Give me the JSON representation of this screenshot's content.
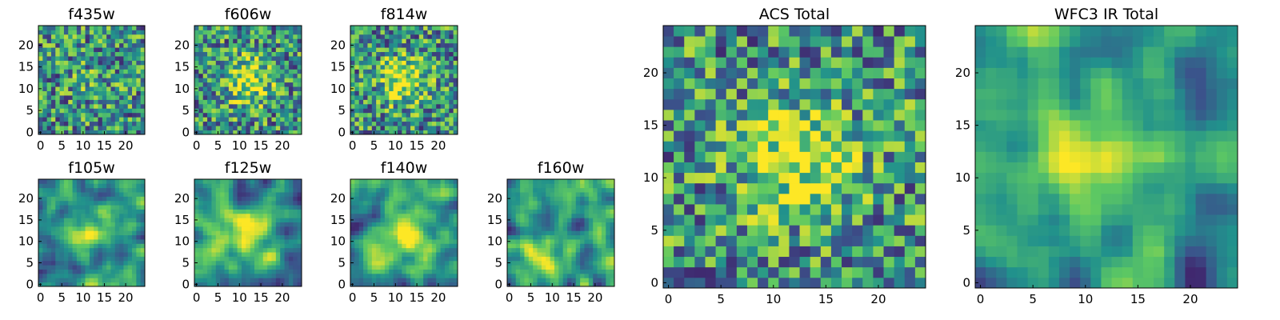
{
  "chart_data": [
    {
      "type": "heatmap",
      "title": "f435w",
      "size": 25,
      "seed": 11,
      "pattern": "noise",
      "xticks": [
        0,
        5,
        10,
        15,
        20
      ],
      "yticks": [
        0,
        5,
        10,
        15,
        20
      ]
    },
    {
      "type": "heatmap",
      "title": "f606w",
      "size": 25,
      "seed": 23,
      "pattern": "noise-center",
      "xticks": [
        0,
        5,
        10,
        15,
        20
      ],
      "yticks": [
        0,
        5,
        10,
        15,
        20
      ]
    },
    {
      "type": "heatmap",
      "title": "f814w",
      "size": 25,
      "seed": 37,
      "pattern": "noise-center",
      "xticks": [
        0,
        5,
        10,
        15,
        20
      ],
      "yticks": [
        0,
        5,
        10,
        15,
        20
      ]
    },
    {
      "type": "heatmap",
      "title": "f105w",
      "size": 25,
      "seed": 41,
      "pattern": "smooth",
      "xticks": [
        0,
        5,
        10,
        15,
        20
      ],
      "yticks": [
        0,
        5,
        10,
        15,
        20
      ]
    },
    {
      "type": "heatmap",
      "title": "f125w",
      "size": 25,
      "seed": 53,
      "pattern": "smooth",
      "xticks": [
        0,
        5,
        10,
        15,
        20
      ],
      "yticks": [
        0,
        5,
        10,
        15,
        20
      ]
    },
    {
      "type": "heatmap",
      "title": "f140w",
      "size": 25,
      "seed": 67,
      "pattern": "smooth",
      "xticks": [
        0,
        5,
        10,
        15,
        20
      ],
      "yticks": [
        0,
        5,
        10,
        15,
        20
      ]
    },
    {
      "type": "heatmap",
      "title": "f160w",
      "size": 25,
      "seed": 79,
      "pattern": "smooth-low",
      "xticks": [
        0,
        5,
        10,
        15,
        20
      ],
      "yticks": [
        0,
        5,
        10,
        15,
        20
      ]
    },
    {
      "type": "heatmap",
      "title": "ACS Total",
      "size": 25,
      "seed": 97,
      "pattern": "noise-center",
      "xticks": [
        0,
        5,
        10,
        15,
        20
      ],
      "yticks": [
        0,
        5,
        10,
        15,
        20
      ]
    },
    {
      "type": "heatmap",
      "title": "WFC3 IR Total",
      "size": 25,
      "seed": 131,
      "pattern": "smooth",
      "xticks": [
        0,
        5,
        10,
        15,
        20
      ],
      "yticks": [
        0,
        5,
        10,
        15,
        20
      ]
    }
  ],
  "colormap": [
    "#440154",
    "#3b528b",
    "#21918c",
    "#5ec962",
    "#fde725"
  ]
}
